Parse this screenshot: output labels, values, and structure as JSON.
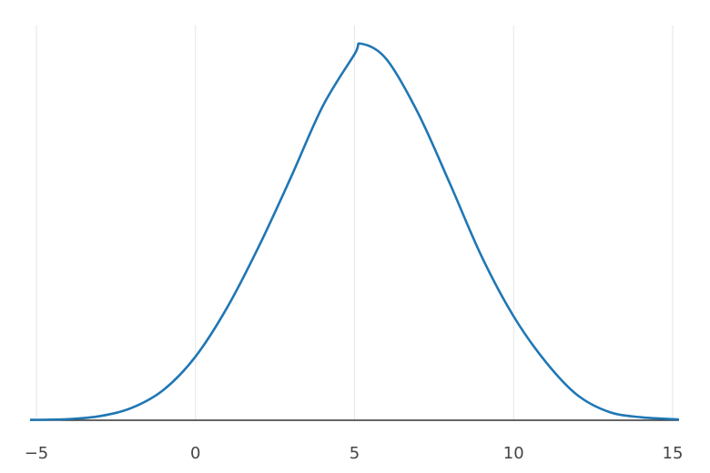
{
  "chart_data": {
    "type": "line",
    "title": "",
    "xlabel": "",
    "ylabel": "",
    "xlim": [
      -5.2,
      15.2
    ],
    "ylim": [
      0,
      1.0
    ],
    "x_ticks": [
      -5,
      0,
      5,
      10,
      15
    ],
    "x_tick_labels": [
      "−5",
      "0",
      "5",
      "10",
      "15"
    ],
    "y_ticks_shown": false,
    "grid": "vertical",
    "legend": "none",
    "series": [
      {
        "color": "#1f77b4",
        "x": [
          -5.2,
          -4,
          -3,
          -2,
          -1,
          0,
          1,
          2,
          3,
          4,
          5,
          5.2,
          6,
          7,
          8,
          9,
          10,
          11,
          12,
          13,
          14,
          15,
          15.2
        ],
        "y": [
          0.001,
          0.003,
          0.011,
          0.033,
          0.081,
          0.169,
          0.3,
          0.463,
          0.645,
          0.834,
          0.972,
          1.0,
          0.959,
          0.815,
          0.628,
          0.434,
          0.276,
          0.156,
          0.067,
          0.022,
          0.008,
          0.003,
          0.002
        ]
      }
    ]
  }
}
